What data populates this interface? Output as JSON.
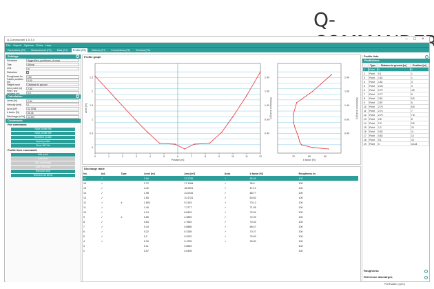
{
  "logo": {
    "text": "Q-COMMANDER"
  },
  "window": {
    "title": "Q-Commander 1.0.3.4"
  },
  "menu": [
    "File",
    "Export",
    "Options",
    "Extra",
    "Help"
  ],
  "tabs": [
    {
      "label": "Parameters (F2)"
    },
    {
      "label": "Measurement (F3)"
    },
    {
      "label": "Data (F4)"
    },
    {
      "label": "Profile (F6)",
      "active": true
    },
    {
      "label": "Stations (F7)"
    },
    {
      "label": "Connections (F8)"
    },
    {
      "label": "Terminal (F9)"
    }
  ],
  "settings": {
    "title": "Settings",
    "rows": [
      {
        "label": "Filename",
        "value": "ifpgprofilen_positionen_ct.cmpr"
      },
      {
        "label": "Title",
        "value": "Altona"
      },
      {
        "label": "Unit",
        "value": "m"
      },
      {
        "label": "Distortion",
        "value": "✓"
      },
      {
        "label": "Roughness ks",
        "value": "100"
      },
      {
        "label": "Faster position [m]",
        "value": "0.00"
      },
      {
        "label": "Height input",
        "value": "Distance to ground"
      },
      {
        "label": "Zero point [m]",
        "value": "2.84"
      },
      {
        "label": "Filter. line spacing [m]",
        "value": "0.5"
      }
    ]
  },
  "calculation": {
    "title": "Calculation",
    "rows": [
      {
        "label": "Level [m]",
        "value": "2.84"
      },
      {
        "label": "Velocity [m/s]",
        "value": "0"
      },
      {
        "label": "Area [m²]",
        "value": "22.3756"
      },
      {
        "label": "k factor [%]",
        "value": "65.46"
      },
      {
        "label": "Discharge [m³/s]",
        "value": "14.907"
      }
    ]
  },
  "commands": {
    "title": "Commands",
    "file_label": "File commands",
    "file_buttons": [
      "Save profile file",
      "Save profile file",
      "Redefine profile",
      "Import profile",
      "Clear NP/ file"
    ],
    "point_label": "Profile lines commands",
    "point_buttons": [
      {
        "label": "Add point",
        "disabled": false
      },
      {
        "label": "Add start",
        "disabled": true
      },
      {
        "label": "Add submerge",
        "disabled": true
      },
      {
        "label": "Add intercept",
        "disabled": true
      },
      {
        "label": "Remove item",
        "disabled": false
      },
      {
        "label": "Remove all items",
        "disabled": false
      }
    ]
  },
  "profile_graph": {
    "title": "Profile graph"
  },
  "chart_data": [
    {
      "type": "line",
      "title": "",
      "xlabel": "Position [m]",
      "ylabel": "Level [m]",
      "y2label": "Reference level [m]",
      "xlim": [
        0,
        12
      ],
      "ylim": [
        -0.2,
        3.0
      ],
      "x": [
        0,
        1.5,
        3.0,
        3.8,
        4.7,
        5.8,
        6.5,
        7.2,
        8.3,
        9.2,
        10.0,
        11.0,
        12.0
      ],
      "series": [
        {
          "values": [
            2.55,
            1.75,
            0.95,
            0.55,
            0.15,
            0.12,
            -0.05,
            0.12,
            0.15,
            0.55,
            1.1,
            1.85,
            2.7
          ]
        }
      ],
      "water_level": 2.84,
      "grid": true
    },
    {
      "type": "line",
      "title": "",
      "xlabel": "k factor [%]",
      "ylabel": "Reference level [m]",
      "xlim": [
        60,
        100
      ],
      "ylim": [
        -0.2,
        3.0
      ],
      "x": [
        94,
        82,
        72,
        70,
        70,
        71,
        73,
        74,
        75,
        82,
        92
      ],
      "y": [
        2.6,
        2.0,
        1.6,
        1.2,
        0.9,
        0.7,
        0.4,
        0.2,
        0.1,
        0.0,
        -0.05
      ]
    }
  ],
  "discharge_table": {
    "title": "Discharge table",
    "columns": [
      "No.",
      "Act.",
      "Type",
      "Level [m]",
      "Area [m²]",
      "Auto.",
      "k factor [%]",
      "Roughness ks"
    ],
    "rows": [
      [
        "17",
        "✓",
        "",
        "2.84",
        "22.3756",
        "✓",
        "65.46",
        "100"
      ],
      [
        "16",
        "✓",
        "",
        "2.72",
        "17.1084",
        "✓",
        "35.9",
        "100"
      ],
      [
        "15",
        "✓",
        "",
        "2.42",
        "18.2591",
        "✓",
        "67.12",
        "100"
      ],
      [
        "14",
        "✓",
        "",
        "1.98",
        "11.0244",
        "✓",
        "68.77",
        "100"
      ],
      [
        "13",
        "✓",
        "",
        "1.84",
        "11.4724",
        "✓",
        "63.82",
        "100"
      ],
      [
        "12",
        "✓",
        "k",
        "1.603",
        "9.2193",
        "✓",
        "70.12",
        "100"
      ],
      [
        "11",
        "✓",
        "",
        "1.40",
        "7.2777",
        "✓",
        "71.05",
        "100"
      ],
      [
        "10",
        "✓",
        "",
        "1.14",
        "6.8433",
        "✓",
        "72.34",
        "100"
      ],
      [
        "9",
        "✓",
        "k",
        "0.89",
        "4.3859",
        "✓",
        "72.49",
        "100"
      ],
      [
        "8",
        "✓",
        "",
        "0.64",
        "2.7653",
        "✓",
        "70.43",
        "100"
      ],
      [
        "7",
        "✓",
        "",
        "0.43",
        "0.8886",
        "✓",
        "68.47",
        "100"
      ],
      [
        "6",
        "✓",
        "",
        "0.22",
        "0.3155",
        "✓",
        "70.27",
        "100"
      ],
      [
        "5",
        "✓",
        "",
        "0.2",
        "0.2032",
        "✓",
        "79.63",
        "100"
      ],
      [
        "4",
        "✓",
        "",
        "0.15",
        "0.1235",
        "✓",
        "99.00",
        "100"
      ],
      [
        "3",
        "",
        "",
        "0.11",
        "0.0853",
        "",
        "",
        "100"
      ],
      [
        "2",
        "",
        "",
        "0.07",
        "0.0405",
        "",
        "",
        "100"
      ]
    ]
  },
  "profile_lists": {
    "title": "Profile lists",
    "sub": "Profilelines",
    "columns": [
      "Type",
      "Distance to ground [m]",
      "Position [m]"
    ],
    "rows": [
      [
        "1",
        "Point",
        "0",
        "0"
      ],
      [
        "2",
        "Point",
        "0.1",
        "1"
      ],
      [
        "3",
        "Point",
        "1.51",
        "1"
      ],
      [
        "4",
        "Point",
        "1.81",
        "3"
      ],
      [
        "5",
        "Point",
        "2.03",
        "4"
      ],
      [
        "6",
        "Point",
        "2.72",
        "4.5"
      ],
      [
        "7",
        "Point",
        "2.77",
        "5"
      ],
      [
        "8",
        "Point",
        "2.81",
        "5.5"
      ],
      [
        "9",
        "Point",
        "2.87",
        "6"
      ],
      [
        "10",
        "Point",
        "2.79",
        "6.5"
      ],
      [
        "11",
        "Point",
        "2.74",
        "7"
      ],
      [
        "12",
        "Point",
        "2.79",
        "7.5"
      ],
      [
        "13",
        "Point",
        "2.8",
        "8"
      ],
      [
        "14",
        "Point",
        "2.3",
        "9.5"
      ],
      [
        "15",
        "Point",
        "1.2",
        "10"
      ],
      [
        "16",
        "Point",
        "0.52",
        "11"
      ],
      [
        "17",
        "Point",
        "0.82",
        "12"
      ],
      [
        "18",
        "Point",
        "0.1",
        "13"
      ],
      [
        "19",
        "Point",
        "0",
        "13.44"
      ]
    ],
    "roughness": "Roughness",
    "reference": "Reference discharges"
  },
  "footer": "Portfmation (open)"
}
